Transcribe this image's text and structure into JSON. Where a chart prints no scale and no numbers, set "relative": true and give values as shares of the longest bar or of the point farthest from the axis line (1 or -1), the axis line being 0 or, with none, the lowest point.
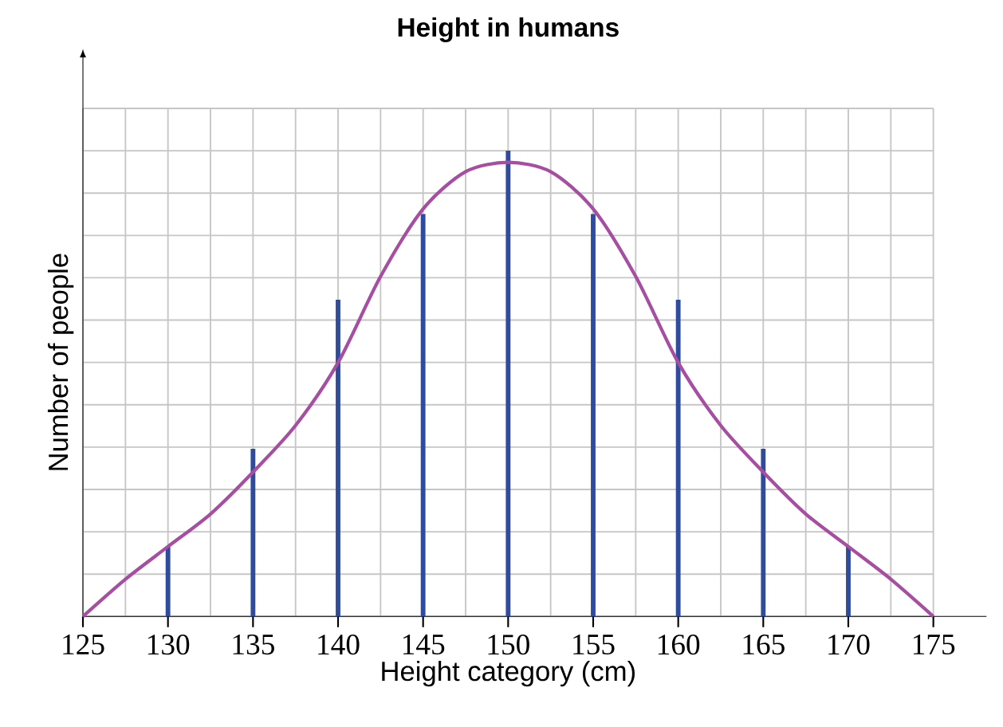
{
  "chart_data": {
    "type": "bar",
    "title": "Height in humans",
    "xlabel": "Height category (cm)",
    "ylabel": "Number of people",
    "relative": true,
    "grid": true,
    "x": [
      130,
      135,
      140,
      145,
      150,
      155,
      160,
      165,
      170
    ],
    "xlim": [
      125,
      175
    ],
    "xticks": [
      125,
      130,
      135,
      140,
      145,
      150,
      155,
      160,
      165,
      170,
      175
    ],
    "series": [
      {
        "color": "#2f4b9c",
        "values": [
          0.15,
          0.36,
          0.68,
          0.864,
          1,
          0.864,
          0.68,
          0.36,
          0.15
        ]
      },
      {
        "type": "line",
        "color": "#a64ea1",
        "x": [
          125,
          127.5,
          130,
          132.5,
          135,
          137.5,
          140,
          142.5,
          145,
          147.5,
          150,
          152.5,
          155,
          157.5,
          160,
          162.5,
          165,
          167.5,
          170,
          172.5,
          175
        ],
        "values": [
          0,
          0.08,
          0.15,
          0.22,
          0.31,
          0.41,
          0.545,
          0.73,
          0.875,
          0.955,
          0.975,
          0.955,
          0.875,
          0.73,
          0.545,
          0.41,
          0.31,
          0.22,
          0.15,
          0.08,
          0
        ]
      }
    ]
  }
}
